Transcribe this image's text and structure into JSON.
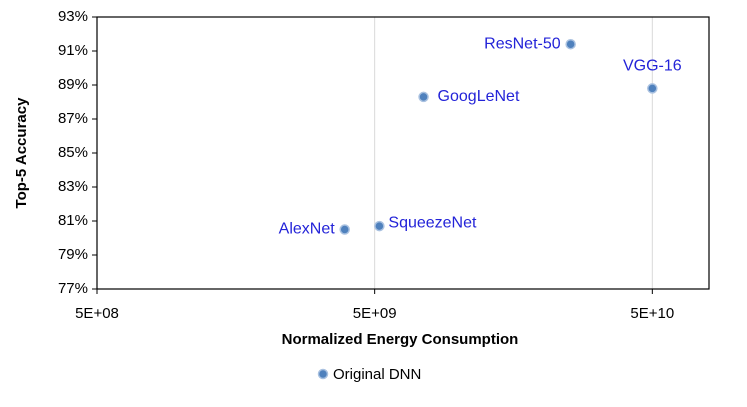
{
  "chart_data": {
    "type": "scatter",
    "x_label": "Normalized Energy Consumption",
    "y_label": "Top-5 Accuracy",
    "x_log": true,
    "grid": true,
    "legend": "bottom",
    "xlim": [
      500000000,
      80000000000
    ],
    "xticks": [
      {
        "value": 500000000,
        "label": "5E+08"
      },
      {
        "value": 5000000000,
        "label": "5E+09"
      },
      {
        "value": 50000000000,
        "label": "5E+10"
      }
    ],
    "ylim": [
      77,
      93
    ],
    "yticks": [
      {
        "value": 77,
        "label": "77%"
      },
      {
        "value": 79,
        "label": "79%"
      },
      {
        "value": 81,
        "label": "81%"
      },
      {
        "value": 83,
        "label": "83%"
      },
      {
        "value": 85,
        "label": "85%"
      },
      {
        "value": 87,
        "label": "87%"
      },
      {
        "value": 89,
        "label": "89%"
      },
      {
        "value": 91,
        "label": "91%"
      },
      {
        "value": 93,
        "label": "93%"
      }
    ],
    "series": [
      {
        "name": "Original DNN",
        "color": "#4f81bd",
        "labels": [
          "AlexNet",
          "SqueezeNet",
          "GoogLeNet",
          "ResNet-50",
          "VGG-16"
        ],
        "label_color": "#2323d8",
        "x": [
          3900000000,
          5200000000,
          7500000000,
          25400000000,
          50000000000
        ],
        "values": [
          80.5,
          80.7,
          88.3,
          91.4,
          88.8
        ]
      }
    ]
  }
}
